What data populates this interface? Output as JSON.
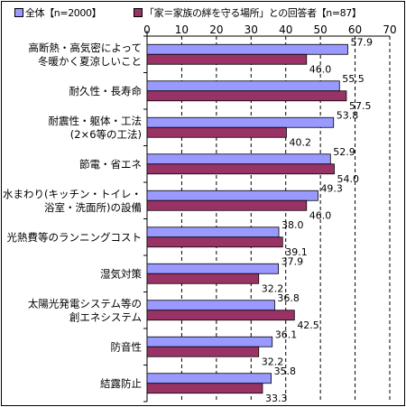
{
  "colors": {
    "series1_fill": "#9999ff",
    "series2_fill": "#993366",
    "grid": "#000000",
    "border": "#000000"
  },
  "chart_data": {
    "type": "bar",
    "orientation": "horizontal",
    "title": "",
    "xlabel": "",
    "ylabel": "",
    "xlim": [
      0,
      70
    ],
    "ticks": [
      0,
      10,
      20,
      30,
      40,
      50,
      60,
      70
    ],
    "gridlines": "vertical-dashed",
    "legend": "top",
    "categories": [
      [
        "高断熱・高気密によって",
        "冬暖かく夏涼しいこと"
      ],
      [
        "耐久性・長寿命"
      ],
      [
        "耐震性・躯体・工法",
        "(2×6等の工法)"
      ],
      [
        "節電・省エネ"
      ],
      [
        "水まわり(キッチン・トイレ・",
        "浴室・洗面所)の設備"
      ],
      [
        "光熱費等のランニングコスト"
      ],
      [
        "湿気対策"
      ],
      [
        "太陽光発電システム等の",
        "創エネシステム"
      ],
      [
        "防音性"
      ],
      [
        "結露防止"
      ]
    ],
    "series": [
      {
        "name": "全体【n=2000】",
        "color": "#9999ff",
        "values": [
          57.9,
          55.5,
          53.8,
          52.9,
          49.3,
          38.0,
          37.9,
          36.8,
          36.1,
          35.8
        ],
        "labels": [
          "57.9",
          "55.5",
          "53.8",
          "52.9",
          "49.3",
          "38.0",
          "37.9",
          "36.8",
          "36.1",
          "35.8"
        ]
      },
      {
        "name": "「家＝家族の絆を守る場所」との回答者【n=87】",
        "color": "#993366",
        "values": [
          46.0,
          57.5,
          40.2,
          54.0,
          46.0,
          39.1,
          32.2,
          42.5,
          32.2,
          33.3
        ],
        "labels": [
          "46.0",
          "57.5",
          "40.2",
          "54.0",
          "46.0",
          "39.1",
          "32.2",
          "42.5",
          "32.2",
          "33.3"
        ]
      }
    ]
  }
}
